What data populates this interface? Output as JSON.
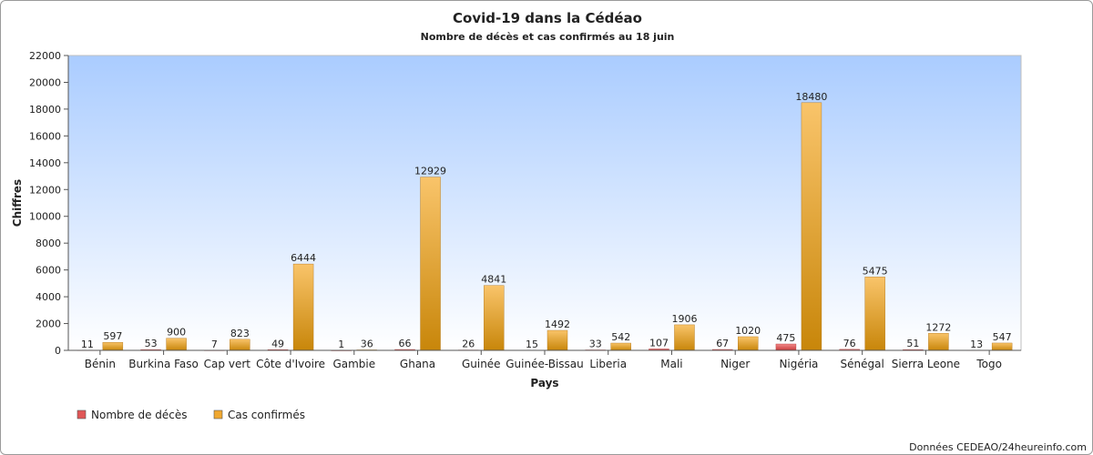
{
  "chart_data": {
    "type": "bar",
    "title": "Covid-19 dans la Cédéao",
    "subtitle": "Nombre de décès et cas confirmés au 18 juin",
    "xlabel": "Pays",
    "ylabel": "Chiffres",
    "ylim": [
      0,
      22000
    ],
    "yticks": [
      0,
      2000,
      4000,
      6000,
      8000,
      10000,
      12000,
      14000,
      16000,
      18000,
      20000,
      22000
    ],
    "categories": [
      "Bénin",
      "Burkina Faso",
      "Cap vert",
      "Côte d'Ivoire",
      "Gambie",
      "Ghana",
      "Guinée",
      "Guinée-Bissau",
      "Liberia",
      "Mali",
      "Niger",
      "Nigéria",
      "Sénégal",
      "Sierra Leone",
      "Togo"
    ],
    "series": [
      {
        "name": "Nombre de décès",
        "color": "#e05656",
        "values": [
          11,
          53,
          7,
          49,
          1,
          66,
          26,
          15,
          33,
          107,
          67,
          475,
          76,
          51,
          13
        ]
      },
      {
        "name": "Cas confirmés",
        "color": "#f0a830",
        "values": [
          597,
          900,
          823,
          6444,
          36,
          12929,
          4841,
          1492,
          542,
          1906,
          1020,
          18480,
          5475,
          1272,
          547
        ]
      }
    ],
    "grid": false,
    "legend_position": "bottom-left",
    "source": "Données CEDEAO/24heureinfo.com"
  }
}
